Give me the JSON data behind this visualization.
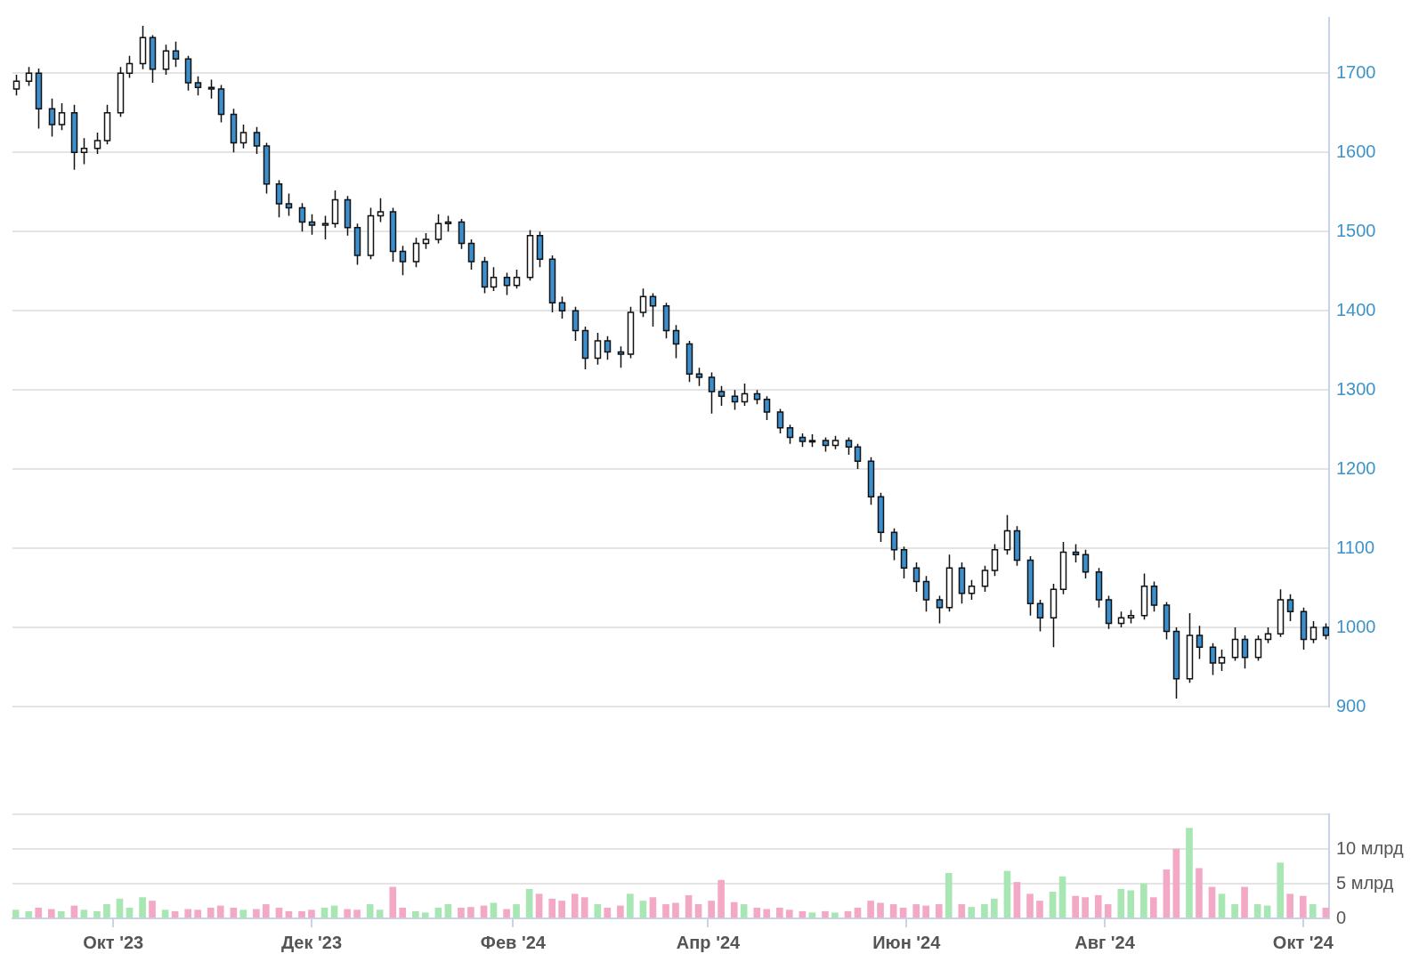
{
  "chart_data": [
    {
      "type": "candlestick",
      "colors": [
        "#ffffff",
        "#ffffff",
        "#3b8fcc",
        "#3b8fcc",
        "#ffffff",
        "#3b8fcc",
        "#ffffff",
        "#ffffff",
        "#ffffff",
        "#ffffff",
        "#ffffff",
        "#ffffff",
        "#3b8fcc",
        "#ffffff",
        "#3b8fcc",
        "#3b8fcc",
        "#3b8fcc",
        "#3b8fcc",
        "#3b8fcc",
        "#3b8fcc",
        "#ffffff",
        "#3b8fcc",
        "#3b8fcc",
        "#3b8fcc",
        "#3b8fcc",
        "#3b8fcc",
        "#3b8fcc",
        "#ffffff",
        "#ffffff",
        "#3b8fcc",
        "#3b8fcc",
        "#ffffff",
        "#ffffff",
        "#3b8fcc",
        "#3b8fcc",
        "#ffffff",
        "#ffffff",
        "#ffffff",
        "#ffffff",
        "#3b8fcc",
        "#3b8fcc",
        "#3b8fcc",
        "#ffffff",
        "#3b8fcc",
        "#ffffff",
        "#ffffff",
        "#3b8fcc",
        "#3b8fcc",
        "#3b8fcc",
        "#3b8fcc",
        "#3b8fcc",
        "#ffffff",
        "#3b8fcc",
        "#3b8fcc",
        "#ffffff",
        "#ffffff",
        "#3b8fcc",
        "#3b8fcc",
        "#3b8fcc",
        "#3b8fcc",
        "#3b8fcc",
        "#3b8fcc",
        "#3b8fcc",
        "#3b8fcc",
        "#ffffff",
        "#3b8fcc",
        "#3b8fcc",
        "#3b8fcc",
        "#3b8fcc",
        "#3b8fcc",
        "#ffffff",
        "#3b8fcc",
        "#ffffff",
        "#3b8fcc",
        "#3b8fcc",
        "#3b8fcc",
        "#3b8fcc",
        "#3b8fcc",
        "#3b8fcc",
        "#3b8fcc",
        "#3b8fcc",
        "#3b8fcc",
        "#ffffff",
        "#3b8fcc",
        "#ffffff",
        "#ffffff",
        "#ffffff",
        "#ffffff",
        "#3b8fcc",
        "#3b8fcc",
        "#3b8fcc",
        "#ffffff",
        "#ffffff",
        "#3b8fcc",
        "#3b8fcc",
        "#3b8fcc",
        "#3b8fcc",
        "#ffffff",
        "#ffffff",
        "#ffffff",
        "#3b8fcc",
        "#3b8fcc",
        "#3b8fcc",
        "#ffffff",
        "#3b8fcc",
        "#3b8fcc",
        "#ffffff",
        "#ffffff",
        "#3b8fcc",
        "#ffffff",
        "#ffffff",
        "#ffffff",
        "#3b8fcc",
        "#3b8fcc",
        "#ffffff",
        "#3b8fcc"
      ],
      "x": [
        "2023-09-01",
        "2023-09-05",
        "2023-09-08",
        "2023-09-12",
        "2023-09-15",
        "2023-09-19",
        "2023-09-22",
        "2023-09-26",
        "2023-09-29",
        "2023-10-03",
        "2023-10-06",
        "2023-10-10",
        "2023-10-13",
        "2023-10-17",
        "2023-10-20",
        "2023-10-24",
        "2023-10-27",
        "2023-10-31",
        "2023-11-03",
        "2023-11-07",
        "2023-11-10",
        "2023-11-14",
        "2023-11-17",
        "2023-11-21",
        "2023-11-24",
        "2023-11-28",
        "2023-12-01",
        "2023-12-05",
        "2023-12-08",
        "2023-12-12",
        "2023-12-15",
        "2023-12-19",
        "2023-12-22",
        "2023-12-26",
        "2023-12-29",
        "2024-01-02",
        "2024-01-05",
        "2024-01-09",
        "2024-01-12",
        "2024-01-16",
        "2024-01-19",
        "2024-01-23",
        "2024-01-26",
        "2024-01-30",
        "2024-02-02",
        "2024-02-06",
        "2024-02-09",
        "2024-02-13",
        "2024-02-16",
        "2024-02-20",
        "2024-02-23",
        "2024-02-27",
        "2024-03-01",
        "2024-03-05",
        "2024-03-08",
        "2024-03-12",
        "2024-03-15",
        "2024-03-19",
        "2024-03-22",
        "2024-03-26",
        "2024-03-29",
        "2024-04-02",
        "2024-04-05",
        "2024-04-09",
        "2024-04-12",
        "2024-04-16",
        "2024-04-19",
        "2024-04-23",
        "2024-04-26",
        "2024-04-30",
        "2024-05-03",
        "2024-05-07",
        "2024-05-10",
        "2024-05-14",
        "2024-05-17",
        "2024-05-21",
        "2024-05-24",
        "2024-05-28",
        "2024-05-31",
        "2024-06-04",
        "2024-06-07",
        "2024-06-11",
        "2024-06-14",
        "2024-06-18",
        "2024-06-21",
        "2024-06-25",
        "2024-06-28",
        "2024-07-02",
        "2024-07-05",
        "2024-07-09",
        "2024-07-12",
        "2024-07-16",
        "2024-07-19",
        "2024-07-23",
        "2024-07-26",
        "2024-07-30",
        "2024-08-02",
        "2024-08-06",
        "2024-08-09",
        "2024-08-13",
        "2024-08-16",
        "2024-08-20",
        "2024-08-23",
        "2024-08-27",
        "2024-08-30",
        "2024-09-03",
        "2024-09-06",
        "2024-09-10",
        "2024-09-13",
        "2024-09-17",
        "2024-09-20",
        "2024-09-24",
        "2024-09-27",
        "2024-10-01",
        "2024-10-04",
        "2024-10-08"
      ],
      "ohlc": [
        [
          1680,
          1698,
          1672,
          1690
        ],
        [
          1690,
          1708,
          1684,
          1700
        ],
        [
          1700,
          1706,
          1630,
          1655
        ],
        [
          1655,
          1668,
          1620,
          1635
        ],
        [
          1635,
          1662,
          1628,
          1650
        ],
        [
          1650,
          1660,
          1578,
          1600
        ],
        [
          1600,
          1618,
          1585,
          1605
        ],
        [
          1605,
          1625,
          1598,
          1615
        ],
        [
          1615,
          1660,
          1610,
          1650
        ],
        [
          1650,
          1708,
          1645,
          1700
        ],
        [
          1700,
          1722,
          1694,
          1712
        ],
        [
          1712,
          1760,
          1705,
          1745
        ],
        [
          1745,
          1748,
          1688,
          1705
        ],
        [
          1705,
          1736,
          1698,
          1728
        ],
        [
          1728,
          1740,
          1708,
          1718
        ],
        [
          1718,
          1722,
          1678,
          1688
        ],
        [
          1688,
          1696,
          1672,
          1682
        ],
        [
          1682,
          1692,
          1668,
          1680
        ],
        [
          1680,
          1685,
          1638,
          1648
        ],
        [
          1648,
          1655,
          1600,
          1612
        ],
        [
          1612,
          1635,
          1605,
          1625
        ],
        [
          1625,
          1632,
          1598,
          1608
        ],
        [
          1608,
          1612,
          1548,
          1560
        ],
        [
          1560,
          1565,
          1518,
          1535
        ],
        [
          1535,
          1548,
          1520,
          1530
        ],
        [
          1530,
          1536,
          1500,
          1512
        ],
        [
          1512,
          1522,
          1496,
          1508
        ],
        [
          1508,
          1520,
          1490,
          1510
        ],
        [
          1510,
          1552,
          1505,
          1540
        ],
        [
          1540,
          1545,
          1495,
          1505
        ],
        [
          1505,
          1510,
          1458,
          1470
        ],
        [
          1470,
          1530,
          1465,
          1520
        ],
        [
          1520,
          1542,
          1512,
          1525
        ],
        [
          1525,
          1530,
          1462,
          1475
        ],
        [
          1475,
          1482,
          1445,
          1462
        ],
        [
          1462,
          1492,
          1455,
          1485
        ],
        [
          1485,
          1498,
          1478,
          1490
        ],
        [
          1490,
          1522,
          1485,
          1510
        ],
        [
          1510,
          1520,
          1500,
          1512
        ],
        [
          1512,
          1516,
          1478,
          1485
        ],
        [
          1485,
          1490,
          1452,
          1462
        ],
        [
          1462,
          1468,
          1422,
          1430
        ],
        [
          1430,
          1455,
          1425,
          1442
        ],
        [
          1442,
          1448,
          1420,
          1432
        ],
        [
          1432,
          1452,
          1428,
          1442
        ],
        [
          1442,
          1502,
          1438,
          1495
        ],
        [
          1495,
          1500,
          1455,
          1465
        ],
        [
          1465,
          1470,
          1398,
          1410
        ],
        [
          1410,
          1418,
          1390,
          1400
        ],
        [
          1400,
          1405,
          1362,
          1375
        ],
        [
          1375,
          1380,
          1326,
          1340
        ],
        [
          1340,
          1372,
          1332,
          1362
        ],
        [
          1362,
          1368,
          1338,
          1348
        ],
        [
          1348,
          1355,
          1328,
          1345
        ],
        [
          1345,
          1405,
          1340,
          1398
        ],
        [
          1398,
          1428,
          1392,
          1418
        ],
        [
          1418,
          1422,
          1380,
          1406
        ],
        [
          1406,
          1410,
          1365,
          1375
        ],
        [
          1375,
          1382,
          1340,
          1358
        ],
        [
          1358,
          1362,
          1310,
          1320
        ],
        [
          1320,
          1328,
          1305,
          1316
        ],
        [
          1316,
          1322,
          1270,
          1298
        ],
        [
          1298,
          1305,
          1280,
          1292
        ],
        [
          1292,
          1300,
          1275,
          1285
        ],
        [
          1285,
          1308,
          1280,
          1295
        ],
        [
          1295,
          1300,
          1282,
          1288
        ],
        [
          1288,
          1292,
          1262,
          1272
        ],
        [
          1272,
          1276,
          1245,
          1252
        ],
        [
          1252,
          1256,
          1232,
          1240
        ],
        [
          1240,
          1245,
          1228,
          1235
        ],
        [
          1235,
          1244,
          1228,
          1236
        ],
        [
          1236,
          1240,
          1222,
          1230
        ],
        [
          1230,
          1242,
          1225,
          1236
        ],
        [
          1236,
          1240,
          1218,
          1228
        ],
        [
          1228,
          1232,
          1200,
          1210
        ],
        [
          1210,
          1215,
          1155,
          1165
        ],
        [
          1165,
          1170,
          1108,
          1120
        ],
        [
          1120,
          1125,
          1085,
          1098
        ],
        [
          1098,
          1102,
          1062,
          1075
        ],
        [
          1075,
          1082,
          1045,
          1058
        ],
        [
          1058,
          1065,
          1020,
          1035
        ],
        [
          1035,
          1040,
          1005,
          1025
        ],
        [
          1025,
          1092,
          1020,
          1075
        ],
        [
          1075,
          1082,
          1030,
          1043
        ],
        [
          1043,
          1060,
          1035,
          1052
        ],
        [
          1052,
          1078,
          1045,
          1072
        ],
        [
          1072,
          1105,
          1065,
          1098
        ],
        [
          1098,
          1142,
          1092,
          1122
        ],
        [
          1122,
          1128,
          1078,
          1085
        ],
        [
          1085,
          1090,
          1015,
          1030
        ],
        [
          1030,
          1035,
          995,
          1012
        ],
        [
          1012,
          1055,
          975,
          1048
        ],
        [
          1048,
          1108,
          1042,
          1095
        ],
        [
          1095,
          1105,
          1082,
          1092
        ],
        [
          1092,
          1098,
          1062,
          1070
        ],
        [
          1070,
          1075,
          1025,
          1035
        ],
        [
          1035,
          1040,
          998,
          1005
        ],
        [
          1005,
          1020,
          1000,
          1012
        ],
        [
          1012,
          1022,
          1005,
          1015
        ],
        [
          1015,
          1068,
          1010,
          1052
        ],
        [
          1052,
          1058,
          1020,
          1028
        ],
        [
          1028,
          1032,
          985,
          995
        ],
        [
          995,
          1000,
          910,
          935
        ],
        [
          935,
          1018,
          930,
          990
        ],
        [
          990,
          1002,
          960,
          975
        ],
        [
          975,
          980,
          940,
          955
        ],
        [
          955,
          972,
          945,
          962
        ],
        [
          962,
          1000,
          958,
          985
        ],
        [
          985,
          990,
          948,
          962
        ],
        [
          962,
          990,
          958,
          985
        ],
        [
          985,
          1000,
          980,
          992
        ],
        [
          992,
          1048,
          988,
          1035
        ],
        [
          1035,
          1042,
          1008,
          1020
        ],
        [
          1020,
          1025,
          972,
          985
        ],
        [
          985,
          1008,
          980,
          1000
        ],
        [
          1000,
          1005,
          985,
          990
        ]
      ],
      "xlim": [
        "2023-08-31",
        "2024-10-09"
      ],
      "ylim": [
        900,
        1770
      ],
      "yticks": [
        900,
        1000,
        1100,
        1200,
        1300,
        1400,
        1500,
        1600,
        1700
      ],
      "grid": "y",
      "tick_labels": "y"
    },
    {
      "type": "bar",
      "x": [
        "2023-09-01",
        "2023-09-05",
        "2023-09-08",
        "2023-09-12",
        "2023-09-15",
        "2023-09-19",
        "2023-09-22",
        "2023-09-26",
        "2023-09-29",
        "2023-10-03",
        "2023-10-06",
        "2023-10-10",
        "2023-10-13",
        "2023-10-17",
        "2023-10-20",
        "2023-10-24",
        "2023-10-27",
        "2023-10-31",
        "2023-11-03",
        "2023-11-07",
        "2023-11-10",
        "2023-11-14",
        "2023-11-17",
        "2023-11-21",
        "2023-11-24",
        "2023-11-28",
        "2023-12-01",
        "2023-12-05",
        "2023-12-08",
        "2023-12-12",
        "2023-12-15",
        "2023-12-19",
        "2023-12-22",
        "2023-12-26",
        "2023-12-29",
        "2024-01-02",
        "2024-01-05",
        "2024-01-09",
        "2024-01-12",
        "2024-01-16",
        "2024-01-19",
        "2024-01-23",
        "2024-01-26",
        "2024-01-30",
        "2024-02-02",
        "2024-02-06",
        "2024-02-09",
        "2024-02-13",
        "2024-02-16",
        "2024-02-20",
        "2024-02-23",
        "2024-02-27",
        "2024-03-01",
        "2024-03-05",
        "2024-03-08",
        "2024-03-12",
        "2024-03-15",
        "2024-03-19",
        "2024-03-22",
        "2024-03-26",
        "2024-03-29",
        "2024-04-02",
        "2024-04-05",
        "2024-04-09",
        "2024-04-12",
        "2024-04-16",
        "2024-04-19",
        "2024-04-23",
        "2024-04-26",
        "2024-04-30",
        "2024-05-03",
        "2024-05-07",
        "2024-05-10",
        "2024-05-14",
        "2024-05-17",
        "2024-05-21",
        "2024-05-24",
        "2024-05-28",
        "2024-05-31",
        "2024-06-04",
        "2024-06-07",
        "2024-06-11",
        "2024-06-14",
        "2024-06-18",
        "2024-06-21",
        "2024-06-25",
        "2024-06-28",
        "2024-07-02",
        "2024-07-05",
        "2024-07-09",
        "2024-07-12",
        "2024-07-16",
        "2024-07-19",
        "2024-07-23",
        "2024-07-26",
        "2024-07-30",
        "2024-08-02",
        "2024-08-06",
        "2024-08-09",
        "2024-08-13",
        "2024-08-16",
        "2024-08-20",
        "2024-08-23",
        "2024-08-27",
        "2024-08-30",
        "2024-09-03",
        "2024-09-06",
        "2024-09-10",
        "2024-09-13",
        "2024-09-17",
        "2024-09-20",
        "2024-09-24",
        "2024-09-27",
        "2024-10-01",
        "2024-10-04",
        "2024-10-08"
      ],
      "values": [
        1.2,
        1.0,
        1.5,
        1.3,
        1.0,
        1.8,
        1.2,
        1.0,
        2.0,
        2.8,
        1.5,
        3.0,
        2.5,
        1.2,
        1.0,
        1.3,
        1.2,
        1.5,
        1.8,
        1.5,
        1.2,
        1.3,
        2.0,
        1.5,
        1.0,
        1.0,
        1.2,
        1.5,
        1.8,
        1.3,
        1.2,
        2.0,
        1.2,
        4.5,
        1.5,
        1.0,
        0.8,
        1.5,
        2.0,
        1.5,
        1.6,
        1.8,
        2.2,
        1.3,
        2.0,
        4.2,
        3.5,
        2.8,
        2.5,
        3.5,
        3.0,
        2.0,
        1.5,
        1.8,
        3.5,
        2.5,
        3.0,
        2.0,
        2.2,
        3.3,
        2.0,
        2.5,
        5.5,
        2.3,
        2.0,
        1.5,
        1.3,
        1.5,
        1.2,
        1.0,
        0.8,
        1.0,
        0.8,
        1.0,
        1.5,
        2.5,
        2.2,
        2.0,
        1.5,
        2.0,
        1.8,
        2.0,
        6.5,
        2.0,
        1.6,
        2.0,
        2.8,
        6.8,
        5.2,
        3.5,
        2.5,
        3.8,
        6.0,
        3.2,
        3.0,
        3.3,
        2.0,
        4.2,
        4.0,
        5.0,
        3.0,
        7.0,
        10.0,
        13.0,
        7.2,
        4.5,
        3.5,
        2.0,
        4.5,
        2.0,
        1.8,
        8.0,
        3.5,
        3.2,
        2.0,
        1.5
      ],
      "colors": [
        "#a8e6b4",
        "#a8e6b4",
        "#f3a9c5",
        "#f3a9c5",
        "#a8e6b4",
        "#f3a9c5",
        "#a8e6b4",
        "#a8e6b4",
        "#a8e6b4",
        "#a8e6b4",
        "#a8e6b4",
        "#a8e6b4",
        "#f3a9c5",
        "#a8e6b4",
        "#f3a9c5",
        "#f3a9c5",
        "#f3a9c5",
        "#f3a9c5",
        "#f3a9c5",
        "#f3a9c5",
        "#a8e6b4",
        "#f3a9c5",
        "#f3a9c5",
        "#f3a9c5",
        "#f3a9c5",
        "#f3a9c5",
        "#f3a9c5",
        "#a8e6b4",
        "#a8e6b4",
        "#f3a9c5",
        "#f3a9c5",
        "#a8e6b4",
        "#a8e6b4",
        "#f3a9c5",
        "#f3a9c5",
        "#a8e6b4",
        "#a8e6b4",
        "#a8e6b4",
        "#a8e6b4",
        "#f3a9c5",
        "#f3a9c5",
        "#f3a9c5",
        "#a8e6b4",
        "#f3a9c5",
        "#a8e6b4",
        "#a8e6b4",
        "#f3a9c5",
        "#f3a9c5",
        "#f3a9c5",
        "#f3a9c5",
        "#f3a9c5",
        "#a8e6b4",
        "#f3a9c5",
        "#f3a9c5",
        "#a8e6b4",
        "#a8e6b4",
        "#f3a9c5",
        "#f3a9c5",
        "#f3a9c5",
        "#f3a9c5",
        "#f3a9c5",
        "#f3a9c5",
        "#f3a9c5",
        "#f3a9c5",
        "#a8e6b4",
        "#f3a9c5",
        "#f3a9c5",
        "#f3a9c5",
        "#f3a9c5",
        "#f3a9c5",
        "#a8e6b4",
        "#f3a9c5",
        "#a8e6b4",
        "#f3a9c5",
        "#f3a9c5",
        "#f3a9c5",
        "#f3a9c5",
        "#f3a9c5",
        "#f3a9c5",
        "#f3a9c5",
        "#f3a9c5",
        "#f3a9c5",
        "#a8e6b4",
        "#f3a9c5",
        "#a8e6b4",
        "#a8e6b4",
        "#a8e6b4",
        "#a8e6b4",
        "#f3a9c5",
        "#f3a9c5",
        "#f3a9c5",
        "#a8e6b4",
        "#a8e6b4",
        "#f3a9c5",
        "#f3a9c5",
        "#f3a9c5",
        "#f3a9c5",
        "#a8e6b4",
        "#a8e6b4",
        "#a8e6b4",
        "#f3a9c5",
        "#f3a9c5",
        "#f3a9c5",
        "#a8e6b4",
        "#f3a9c5",
        "#f3a9c5",
        "#a8e6b4",
        "#a8e6b4",
        "#f3a9c5",
        "#a8e6b4",
        "#a8e6b4",
        "#a8e6b4",
        "#f3a9c5",
        "#f3a9c5",
        "#a8e6b4",
        "#f3a9c5"
      ],
      "xlim": [
        "2023-08-31",
        "2024-10-09"
      ],
      "xticks": [
        {
          "value": "2023-10-01",
          "label": "Окт '23"
        },
        {
          "value": "2023-12-01",
          "label": "Дек '23"
        },
        {
          "value": "2024-02-01",
          "label": "Фев '24"
        },
        {
          "value": "2024-04-01",
          "label": "Апр '24"
        },
        {
          "value": "2024-06-01",
          "label": "Июн '24"
        },
        {
          "value": "2024-08-01",
          "label": "Авг '24"
        },
        {
          "value": "2024-10-01",
          "label": "Окт '24"
        }
      ],
      "ylim": [
        0,
        15
      ],
      "yticks": [
        0,
        {
          "value": 5,
          "label": "5 млрд"
        },
        {
          "value": 10,
          "label": "10 млрд"
        },
        {
          "value": 15,
          "label": null
        }
      ],
      "grid": "y"
    }
  ]
}
